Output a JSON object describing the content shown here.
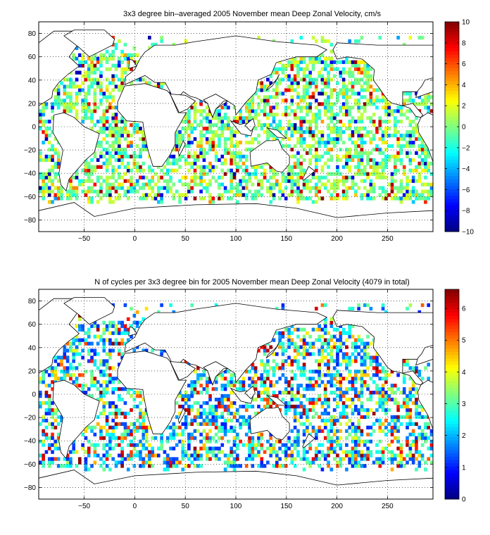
{
  "chart_data": [
    {
      "type": "heatmap",
      "title": "3x3 degree bin–averaged 2005 November mean Deep Zonal Velocity, cm/s",
      "xlabel": "",
      "ylabel": "",
      "xlim": [
        -95,
        295
      ],
      "ylim": [
        -90,
        90
      ],
      "xticks": [
        -50,
        0,
        50,
        100,
        150,
        200,
        250
      ],
      "yticks": [
        -80,
        -60,
        -40,
        -20,
        0,
        20,
        40,
        60,
        80
      ],
      "grid": true,
      "bin_degrees": 3,
      "colorbar": {
        "min": -10,
        "max": 10,
        "ticks": [
          -10,
          -8,
          -6,
          -4,
          -2,
          0,
          2,
          4,
          6,
          8,
          10
        ],
        "colormap": "jet"
      },
      "seed": 11,
      "scale": "centered",
      "density": 0.55
    },
    {
      "type": "heatmap",
      "title": "N of cycles per 3x3 degree bin for 2005 November mean Deep Zonal Velocity (4079 in total)",
      "xlabel": "",
      "ylabel": "",
      "xlim": [
        -95,
        295
      ],
      "ylim": [
        -90,
        90
      ],
      "xticks": [
        -50,
        0,
        50,
        100,
        150,
        200,
        250
      ],
      "yticks": [
        -80,
        -60,
        -40,
        -20,
        0,
        20,
        40,
        60,
        80
      ],
      "grid": true,
      "bin_degrees": 3,
      "total_cycles": 4079,
      "colorbar": {
        "min": 0,
        "max": 6.6,
        "ticks": [
          0,
          1,
          2,
          3,
          4,
          5,
          6
        ],
        "colormap": "jet"
      },
      "seed": 29,
      "scale": "counts",
      "density": 0.5
    }
  ]
}
